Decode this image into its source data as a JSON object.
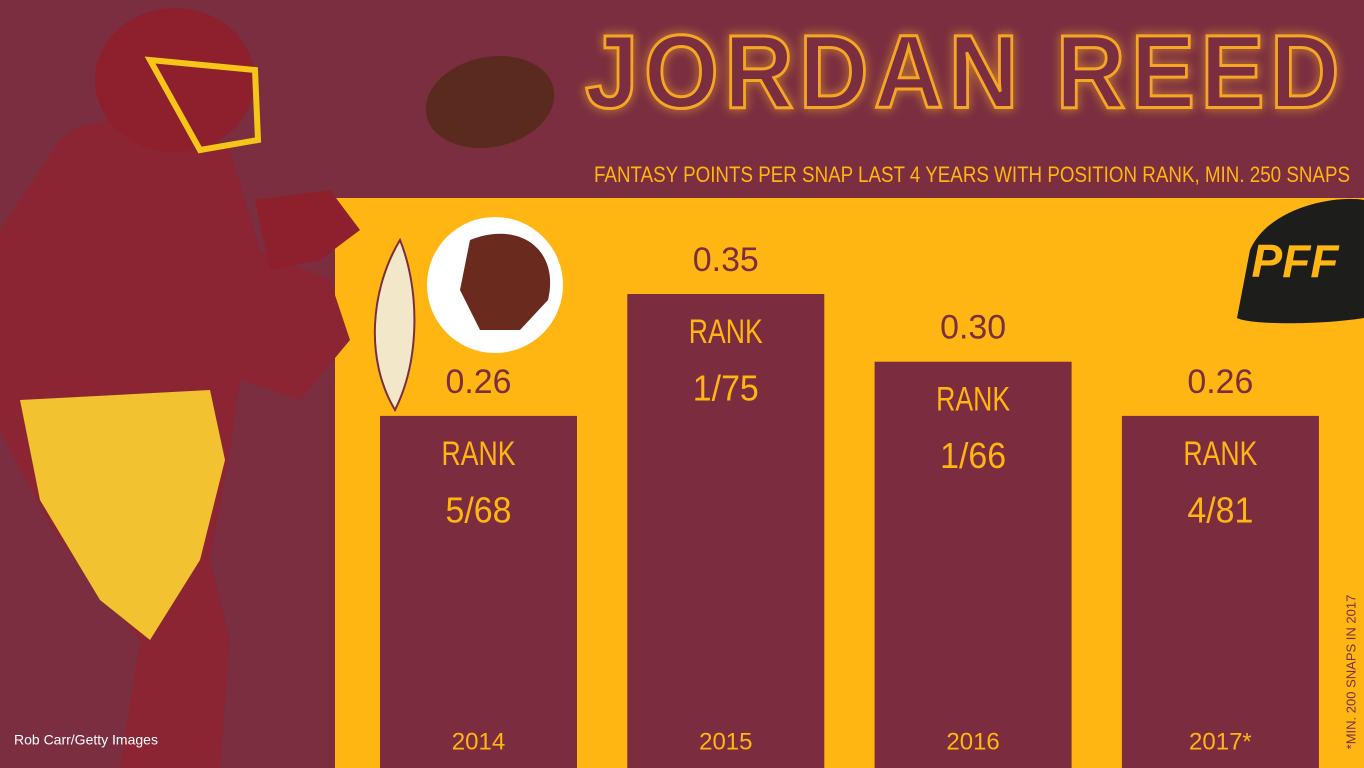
{
  "chart_data": {
    "type": "bar",
    "title": "JORDAN REED",
    "subtitle": "FANTASY POINTS PER SNAP LAST 4 YEARS WITH POSITION RANK, MIN. 250 SNAPS",
    "categories": [
      "2014",
      "2015",
      "2016",
      "2017*"
    ],
    "values": [
      0.26,
      0.35,
      0.3,
      0.26
    ],
    "value_labels": [
      "0.26",
      "0.35",
      "0.30",
      "0.26"
    ],
    "rank_label": "RANK",
    "ranks": [
      "5/68",
      "1/75",
      "1/66",
      "4/81"
    ],
    "color": "#7b2d3f",
    "note": "*MIN. 200 SNAPS IN 2017",
    "credit": "Rob Carr/Getty Images",
    "logo": "PFF"
  }
}
